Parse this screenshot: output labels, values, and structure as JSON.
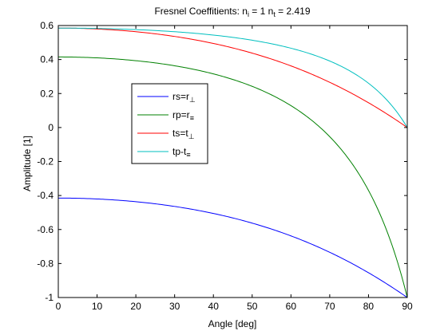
{
  "chart_data": {
    "type": "line",
    "title": {
      "main": "Fresnel Coeffitients: n",
      "sub1": "i",
      "mid": " = 1 n",
      "sub2": "t",
      "tail": " = 2.419"
    },
    "xlabel": "Angle [deg]",
    "ylabel": "Amplitude [1]",
    "xlim": [
      0,
      90
    ],
    "ylim": [
      -1,
      0.6
    ],
    "xticks": [
      "0",
      "10",
      "20",
      "30",
      "40",
      "50",
      "60",
      "70",
      "80",
      "90"
    ],
    "yticks": [
      "-1",
      "-0.8",
      "-0.6",
      "-0.4",
      "-0.2",
      "0",
      "0.2",
      "0.4",
      "0.6"
    ],
    "grid": false,
    "legend_placement": "center-left",
    "n_i": 1,
    "n_t": 2.419,
    "x": [
      0,
      10,
      20,
      30,
      40,
      50,
      60,
      70,
      80,
      85,
      90
    ],
    "series": [
      {
        "name": "rs=r",
        "name_sub": "⊥",
        "color": "#0000ff",
        "values": [
          -0.415,
          -0.422,
          -0.442,
          -0.478,
          -0.531,
          -0.603,
          -0.695,
          -0.806,
          -0.93,
          -0.964,
          -1.0
        ]
      },
      {
        "name": "rp=r",
        "name_sub": "≡",
        "color": "#008000",
        "values": [
          0.415,
          0.409,
          0.391,
          0.356,
          0.298,
          0.206,
          0.062,
          -0.161,
          -0.505,
          -0.729,
          -1.0
        ]
      },
      {
        "name": "ts=t",
        "name_sub": "⊥",
        "color": "#ff0000",
        "values": [
          0.585,
          0.578,
          0.558,
          0.522,
          0.469,
          0.397,
          0.305,
          0.194,
          0.07,
          0.036,
          0.0
        ]
      },
      {
        "name": "tp-t",
        "name_sub": "≡",
        "color": "#00bfbf",
        "values": [
          0.585,
          0.583,
          0.576,
          0.561,
          0.537,
          0.498,
          0.439,
          0.347,
          0.206,
          0.112,
          0.0
        ]
      }
    ]
  }
}
